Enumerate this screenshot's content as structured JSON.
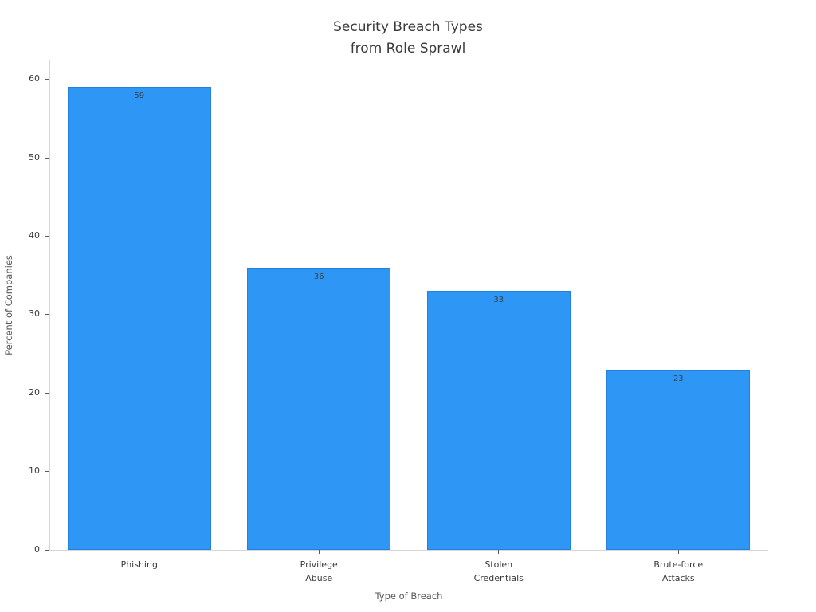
{
  "chart_data": {
    "type": "bar",
    "title": "Security Breach Types\nfrom Role Sprawl",
    "xlabel": "Type of Breach",
    "ylabel": "Percent of Companies",
    "categories": [
      "Phishing",
      "Privilege\nAbuse",
      "Stolen\nCredentials",
      "Brute-force\nAttacks"
    ],
    "values": [
      59,
      36,
      33,
      23
    ],
    "value_labels": [
      "59",
      "36",
      "33",
      "23"
    ],
    "yticks": [
      0,
      10,
      20,
      30,
      40,
      50,
      60
    ],
    "ylim": [
      0,
      62.5
    ],
    "grid": false,
    "legend": null,
    "bar_color": "#2e96f5",
    "bar_edge_color": "rgba(23,105,196,0.45)"
  }
}
